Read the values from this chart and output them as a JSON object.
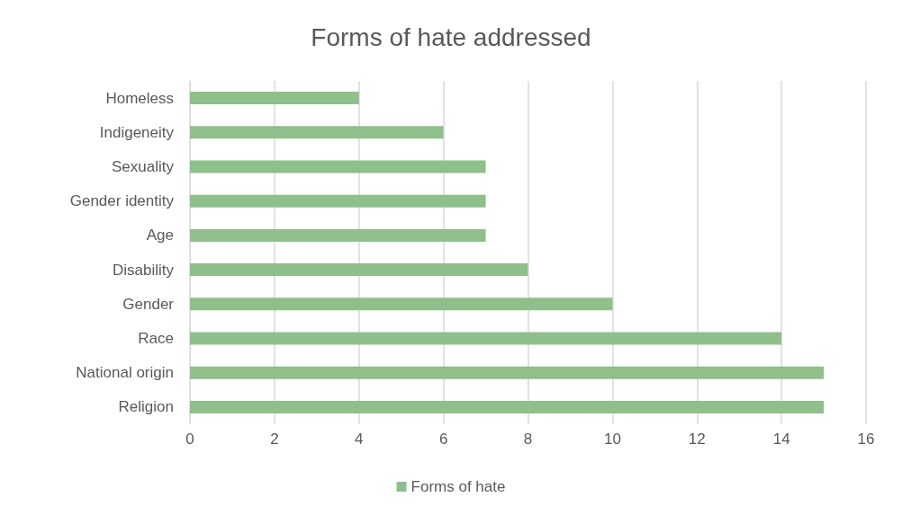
{
  "chart_data": {
    "type": "bar",
    "title": "Forms of hate addressed",
    "orientation": "horizontal",
    "categories": [
      "Homeless",
      "Indigeneity",
      "Sexuality",
      "Gender identity",
      "Age",
      "Disability",
      "Gender",
      "Race",
      "National origin",
      "Religion"
    ],
    "series": [
      {
        "name": "Forms of hate",
        "color": "#8fbf8a",
        "values": [
          4,
          6,
          7,
          7,
          7,
          8,
          10,
          14,
          15,
          15
        ]
      }
    ],
    "xlim": [
      0,
      16
    ],
    "xticks": [
      0,
      2,
      4,
      6,
      8,
      10,
      12,
      14,
      16
    ],
    "grid": "x",
    "legend": "bottom"
  }
}
